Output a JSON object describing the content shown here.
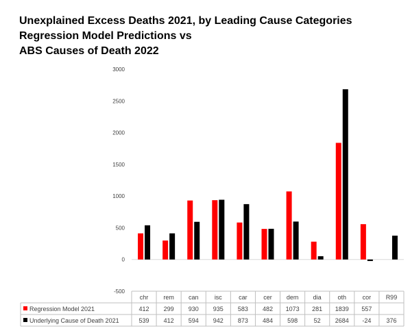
{
  "title_lines": [
    "Unexplained Excess Deaths 2021, by Leading Cause Categories",
    "Regression Model Predictions vs",
    "ABS Causes of Death 2022"
  ],
  "colors": {
    "series_1": "#ff0000",
    "series_2": "#000000",
    "grid": "#bfbfbf",
    "zero_line": "#d9d9d9"
  },
  "chart_data": {
    "type": "bar",
    "categories": [
      "chr",
      "rem",
      "can",
      "isc",
      "car",
      "cer",
      "dem",
      "dia",
      "oth",
      "cor",
      "R99"
    ],
    "series": [
      {
        "name": "Regression Model 2021",
        "values": [
          412,
          299,
          930,
          935,
          583,
          482,
          1073,
          281,
          1839,
          557,
          null
        ]
      },
      {
        "name": "Underlying Cause of Death 2021",
        "values": [
          539,
          412,
          594,
          942,
          873,
          484,
          598,
          52,
          2684,
          -24,
          376
        ]
      }
    ],
    "yticks": [
      3000,
      2500,
      2000,
      1500,
      1000,
      500,
      0,
      -500
    ],
    "ylim": [
      -500,
      3000
    ],
    "grid": false,
    "legend": "data-table"
  }
}
